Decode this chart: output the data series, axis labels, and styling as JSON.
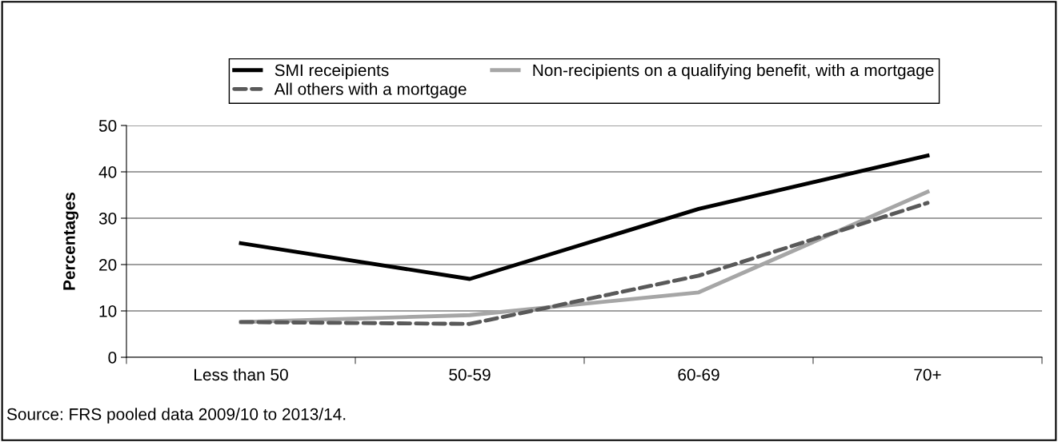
{
  "chart_data": {
    "type": "line",
    "ylabel": "Percentages",
    "categories": [
      "Less than 50",
      "50-59",
      "60-69",
      "70+"
    ],
    "series": [
      {
        "name": "SMI receipients",
        "color": "#000000",
        "line_style": "solid",
        "values": [
          24.6,
          16.9,
          32.0,
          43.5
        ]
      },
      {
        "name": "Non-recipients on a qualifying benefit, with a mortgage",
        "color": "#a6a6a6",
        "line_style": "solid",
        "values": [
          7.6,
          9.1,
          14.0,
          35.7
        ]
      },
      {
        "name": "All others with a mortgage",
        "color": "#595959",
        "line_style": "dashed",
        "values": [
          7.6,
          7.2,
          17.6,
          33.3
        ]
      }
    ],
    "ylim": [
      0,
      50
    ],
    "yticks": [
      0,
      10,
      20,
      30,
      40,
      50
    ],
    "grid": "y",
    "legend": "top",
    "marker": "none",
    "annotations": [
      "Source: FRS pooled data 2009/10 to 2013/14."
    ]
  }
}
